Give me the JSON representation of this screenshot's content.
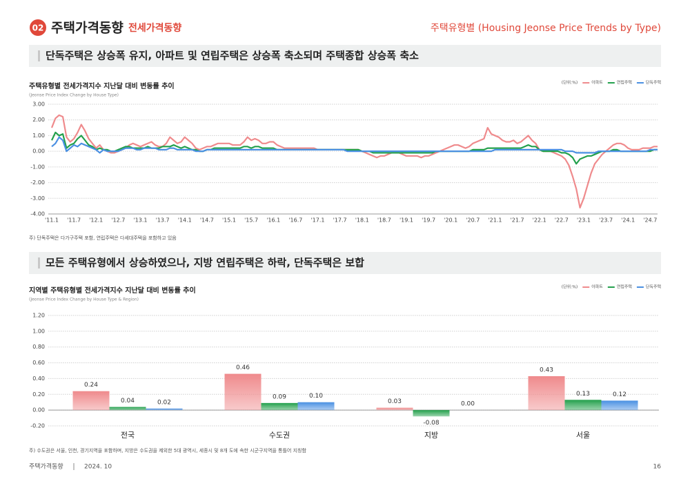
{
  "header": {
    "number": "02",
    "title": "주택가격동향",
    "subtitle": "전세가격동향",
    "right_title": "주택유형별 (Housing Jeonse Price Trends by Type)"
  },
  "sections": [
    {
      "headline": "단독주택은 상승폭 유지, 아파트 및 연립주택은 상승폭 축소되며 주택종합 상승폭 축소",
      "note": "주) 단독주택은 다가구주택 포함, 연립주택은 다세대주택을 포함하고 있음"
    },
    {
      "headline": "모든 주택유형에서 상승하였으나, 지방 연립주택은 하락, 단독주택은 보합",
      "note": "주) 수도권은 서울, 인천, 경기지역을 포함하며, 지방은 수도권을 제외한 5대 광역시, 세종시 및 8개 도에 속한 시군구지역을 통틀어 지칭함"
    }
  ],
  "footer": {
    "left": "주택가격동향",
    "date": "2024. 10",
    "page": "16"
  },
  "chart_data": [
    {
      "type": "line",
      "title": "주택유형별 전세가격지수 지난달 대비 변동률 추이",
      "subtitle": "(Jeonse Price Index Change by House Type)",
      "unit_label": "(단위:%)",
      "categories": [
        "'11.1",
        null,
        null,
        null,
        null,
        null,
        "'11.7",
        null,
        null,
        null,
        null,
        null,
        "'12.1",
        null,
        null,
        null,
        null,
        null,
        "'12.7",
        null,
        null,
        null,
        null,
        null,
        "'13.1",
        null,
        null,
        null,
        null,
        null,
        "'13.7",
        null,
        null,
        null,
        null,
        null,
        "'14.1",
        null,
        null,
        null,
        null,
        null,
        "'14.7",
        null,
        null,
        null,
        null,
        null,
        "'15.1",
        null,
        null,
        null,
        null,
        null,
        "'15.7",
        null,
        null,
        null,
        null,
        null,
        "'16.1",
        null,
        null,
        null,
        null,
        null,
        "'16.7",
        null,
        null,
        null,
        null,
        null,
        "'17.1",
        null,
        null,
        null,
        null,
        null,
        "'17.7",
        null,
        null,
        null,
        null,
        null,
        "'18.1",
        null,
        null,
        null,
        null,
        null,
        "'18.7",
        null,
        null,
        null,
        null,
        null,
        "'19.1",
        null,
        null,
        null,
        null,
        null,
        "'19.7",
        null,
        null,
        null,
        null,
        null,
        "'20.1",
        null,
        null,
        null,
        null,
        null,
        "'20.7",
        null,
        null,
        null,
        null,
        null,
        "'21.1",
        null,
        null,
        null,
        null,
        null,
        "'21.7",
        null,
        null,
        null,
        null,
        null,
        "'22.1",
        null,
        null,
        null,
        null,
        null,
        "'22.7",
        null,
        null,
        null,
        null,
        null,
        "'23.1",
        null,
        null,
        null,
        null,
        null,
        "'23.7",
        null,
        null,
        null,
        null,
        null,
        "'24.1",
        null,
        null,
        null,
        null,
        null,
        "'24.7",
        null,
        null
      ],
      "series": [
        {
          "name": "아파트",
          "color": "#ef8a8c",
          "values": [
            1.5,
            2.1,
            2.3,
            2.2,
            0.9,
            0.6,
            0.8,
            1.2,
            1.7,
            1.3,
            0.8,
            0.5,
            0.2,
            0.4,
            0.1,
            0.0,
            -0.1,
            -0.1,
            0.0,
            0.1,
            0.2,
            0.4,
            0.5,
            0.4,
            0.3,
            0.4,
            0.5,
            0.6,
            0.4,
            0.3,
            0.3,
            0.5,
            0.9,
            0.7,
            0.5,
            0.6,
            0.9,
            0.7,
            0.5,
            0.2,
            0.1,
            0.2,
            0.3,
            0.3,
            0.4,
            0.5,
            0.5,
            0.5,
            0.5,
            0.4,
            0.4,
            0.4,
            0.6,
            0.9,
            0.7,
            0.8,
            0.7,
            0.5,
            0.5,
            0.6,
            0.6,
            0.4,
            0.3,
            0.2,
            0.2,
            0.2,
            0.2,
            0.2,
            0.2,
            0.2,
            0.2,
            0.2,
            0.1,
            0.1,
            0.1,
            0.1,
            0.1,
            0.1,
            0.1,
            0.1,
            0.1,
            0.1,
            0.1,
            0.1,
            0.0,
            -0.1,
            -0.2,
            -0.3,
            -0.4,
            -0.3,
            -0.3,
            -0.2,
            -0.1,
            -0.1,
            -0.1,
            -0.2,
            -0.3,
            -0.3,
            -0.3,
            -0.3,
            -0.4,
            -0.3,
            -0.3,
            -0.2,
            -0.1,
            0.0,
            0.1,
            0.2,
            0.3,
            0.4,
            0.4,
            0.3,
            0.2,
            0.3,
            0.5,
            0.6,
            0.7,
            0.8,
            1.5,
            1.1,
            1.0,
            0.9,
            0.7,
            0.6,
            0.6,
            0.7,
            0.5,
            0.6,
            0.8,
            1.0,
            0.7,
            0.5,
            0.1,
            0.0,
            0.0,
            0.0,
            -0.1,
            -0.2,
            -0.3,
            -0.5,
            -0.9,
            -1.6,
            -2.4,
            -3.6,
            -3.0,
            -2.2,
            -1.4,
            -0.8,
            -0.5,
            -0.2,
            0.0,
            0.2,
            0.4,
            0.5,
            0.5,
            0.4,
            0.2,
            0.1,
            0.1,
            0.1,
            0.2,
            0.2,
            0.2,
            0.3,
            0.3
          ]
        },
        {
          "name": "연립주택",
          "color": "#23a04c",
          "values": [
            0.7,
            1.2,
            1.0,
            1.1,
            0.2,
            0.4,
            0.5,
            0.8,
            1.0,
            0.7,
            0.4,
            0.3,
            0.1,
            0.2,
            0.1,
            0.1,
            0.0,
            0.0,
            0.1,
            0.2,
            0.3,
            0.3,
            0.2,
            0.2,
            0.2,
            0.2,
            0.3,
            0.2,
            0.2,
            0.2,
            0.3,
            0.3,
            0.3,
            0.4,
            0.3,
            0.2,
            0.3,
            0.2,
            0.1,
            0.1,
            0.0,
            0.0,
            0.1,
            0.1,
            0.2,
            0.2,
            0.2,
            0.2,
            0.2,
            0.2,
            0.2,
            0.2,
            0.3,
            0.3,
            0.2,
            0.3,
            0.3,
            0.2,
            0.2,
            0.2,
            0.2,
            0.1,
            0.1,
            0.1,
            0.1,
            0.1,
            0.1,
            0.1,
            0.1,
            0.1,
            0.1,
            0.1,
            0.1,
            0.1,
            0.1,
            0.1,
            0.1,
            0.1,
            0.1,
            0.1,
            0.1,
            0.1,
            0.1,
            0.1,
            0.0,
            0.0,
            0.0,
            -0.1,
            -0.1,
            -0.1,
            -0.1,
            -0.1,
            -0.1,
            -0.1,
            -0.1,
            -0.1,
            -0.1,
            -0.1,
            -0.1,
            -0.1,
            -0.1,
            -0.1,
            -0.1,
            -0.1,
            0.0,
            0.0,
            0.0,
            0.0,
            0.0,
            0.0,
            0.0,
            0.0,
            0.0,
            0.0,
            0.1,
            0.1,
            0.1,
            0.1,
            0.2,
            0.2,
            0.2,
            0.2,
            0.2,
            0.2,
            0.2,
            0.2,
            0.2,
            0.2,
            0.3,
            0.4,
            0.3,
            0.3,
            0.1,
            0.0,
            0.0,
            0.0,
            0.0,
            0.0,
            -0.1,
            -0.1,
            -0.2,
            -0.4,
            -0.8,
            -0.5,
            -0.4,
            -0.3,
            -0.3,
            -0.2,
            -0.1,
            0.0,
            0.0,
            0.0,
            0.1,
            0.1,
            0.0,
            0.0,
            0.0,
            0.0,
            0.0,
            0.0,
            0.0,
            0.0,
            0.0,
            0.1,
            0.1
          ]
        },
        {
          "name": "단독주택",
          "color": "#4a90e2",
          "values": [
            0.3,
            0.5,
            0.9,
            0.7,
            0.0,
            0.2,
            0.4,
            0.3,
            0.5,
            0.4,
            0.3,
            0.2,
            0.1,
            -0.1,
            0.1,
            0.0,
            0.0,
            0.0,
            0.0,
            0.1,
            0.2,
            0.2,
            0.2,
            0.1,
            0.1,
            0.2,
            0.2,
            0.2,
            0.2,
            0.1,
            0.1,
            0.1,
            0.2,
            0.2,
            0.1,
            0.1,
            0.1,
            0.1,
            0.1,
            0.0,
            0.0,
            0.0,
            0.1,
            0.1,
            0.1,
            0.1,
            0.1,
            0.1,
            0.1,
            0.1,
            0.1,
            0.1,
            0.1,
            0.1,
            0.1,
            0.1,
            0.1,
            0.1,
            0.1,
            0.1,
            0.1,
            0.1,
            0.1,
            0.1,
            0.1,
            0.1,
            0.1,
            0.1,
            0.1,
            0.1,
            0.1,
            0.1,
            0.1,
            0.1,
            0.1,
            0.1,
            0.1,
            0.1,
            0.1,
            0.1,
            0.0,
            0.0,
            0.0,
            0.0,
            0.0,
            0.0,
            0.0,
            0.0,
            0.0,
            0.0,
            0.0,
            0.0,
            0.0,
            0.0,
            0.0,
            0.0,
            0.0,
            0.0,
            0.0,
            0.0,
            0.0,
            0.0,
            0.0,
            0.0,
            0.0,
            0.0,
            0.0,
            0.0,
            0.0,
            0.0,
            0.0,
            0.0,
            0.0,
            0.0,
            0.0,
            0.0,
            0.0,
            0.0,
            0.0,
            0.0,
            0.1,
            0.1,
            0.1,
            0.1,
            0.1,
            0.1,
            0.1,
            0.1,
            0.1,
            0.1,
            0.1,
            0.1,
            0.1,
            0.1,
            0.1,
            0.1,
            0.1,
            0.1,
            0.1,
            0.0,
            0.0,
            0.0,
            -0.1,
            -0.1,
            -0.1,
            -0.1,
            -0.1,
            -0.1,
            0.0,
            0.0,
            0.0,
            0.0,
            0.0,
            0.0,
            0.0,
            0.0,
            0.0,
            0.0,
            0.0,
            0.0,
            0.0,
            0.0,
            0.1,
            0.1,
            0.1
          ]
        }
      ],
      "ylim": [
        -4,
        3
      ],
      "yticks": [
        {
          "value": 3,
          "label": "3.00"
        },
        {
          "value": 2,
          "label": "2.00"
        },
        {
          "value": 1,
          "label": "1.00"
        },
        {
          "value": 0,
          "label": "0.00"
        },
        {
          "value": -1,
          "label": "-1.00"
        },
        {
          "value": -2,
          "label": "-2.00"
        },
        {
          "value": -3,
          "label": "-3.00"
        },
        {
          "value": -4,
          "label": "-4.00"
        }
      ],
      "grid": true
    },
    {
      "type": "bar",
      "title": "지역별 주택유형별 전세가격지수 지난달 대비 변동률 추이",
      "subtitle": "(Jeonse Price Index Change by House Type & Region)",
      "unit_label": "(단위:%)",
      "categories": [
        "전국",
        "수도권",
        "지방",
        "서울"
      ],
      "series": [
        {
          "name": "아파트",
          "color": "#ef8a8c",
          "values": [
            0.24,
            0.46,
            0.03,
            0.43
          ],
          "value_labels": [
            "0.24",
            "0.46",
            "0.03",
            "0.43"
          ]
        },
        {
          "name": "연립주택",
          "color": "#23a04c",
          "values": [
            0.04,
            0.09,
            -0.08,
            0.13
          ],
          "value_labels": [
            "0.04",
            "0.09",
            "-0.08",
            "0.13"
          ]
        },
        {
          "name": "단독주택",
          "color": "#4a90e2",
          "values": [
            0.02,
            0.1,
            0.0,
            0.12
          ],
          "value_labels": [
            "0.02",
            "0.10",
            "0.00",
            "0.12"
          ]
        }
      ],
      "ylim": [
        -0.2,
        1.2
      ],
      "yticks": [
        {
          "value": 1.2,
          "label": "1.20"
        },
        {
          "value": 1.0,
          "label": "1.00"
        },
        {
          "value": 0.8,
          "label": "0.80"
        },
        {
          "value": 0.6,
          "label": "0.60"
        },
        {
          "value": 0.4,
          "label": "0.40"
        },
        {
          "value": 0.2,
          "label": "0.20"
        },
        {
          "value": 0,
          "label": "0.00"
        },
        {
          "value": -0.2,
          "label": "-0.20"
        }
      ],
      "grid": true
    }
  ]
}
